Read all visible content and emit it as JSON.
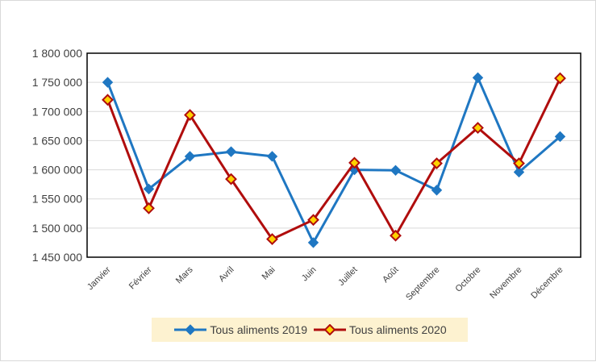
{
  "chart_data": {
    "type": "line",
    "categories": [
      "Janvier",
      "Février",
      "Mars",
      "Avril",
      "Mai",
      "Juin",
      "Juillet",
      "Août",
      "Septembre",
      "Octobre",
      "Novembre",
      "Décembre"
    ],
    "series": [
      {
        "name": "Tous aliments 2019",
        "color": "#1f77c2",
        "marker": "diamond",
        "values": [
          1750000,
          1567000,
          1623000,
          1631000,
          1623000,
          1475000,
          1600000,
          1599000,
          1565000,
          1758000,
          1596000,
          1657000
        ]
      },
      {
        "name": "Tous aliments 2020",
        "color": "#b00d0d",
        "marker_fill": "#ffd200",
        "marker": "diamond",
        "values": [
          1720000,
          1534000,
          1694000,
          1584000,
          1481000,
          1514000,
          1612000,
          1487000,
          1611000,
          1672000,
          1611000,
          1757000
        ]
      }
    ],
    "y_ticks": [
      "1 450 000",
      "1 500 000",
      "1 550 000",
      "1 600 000",
      "1 650 000",
      "1 700 000",
      "1 750 000",
      "1 800 000"
    ],
    "ylim": [
      1450000,
      1800000
    ],
    "grid": "horizontal",
    "legend_position": "bottom"
  }
}
